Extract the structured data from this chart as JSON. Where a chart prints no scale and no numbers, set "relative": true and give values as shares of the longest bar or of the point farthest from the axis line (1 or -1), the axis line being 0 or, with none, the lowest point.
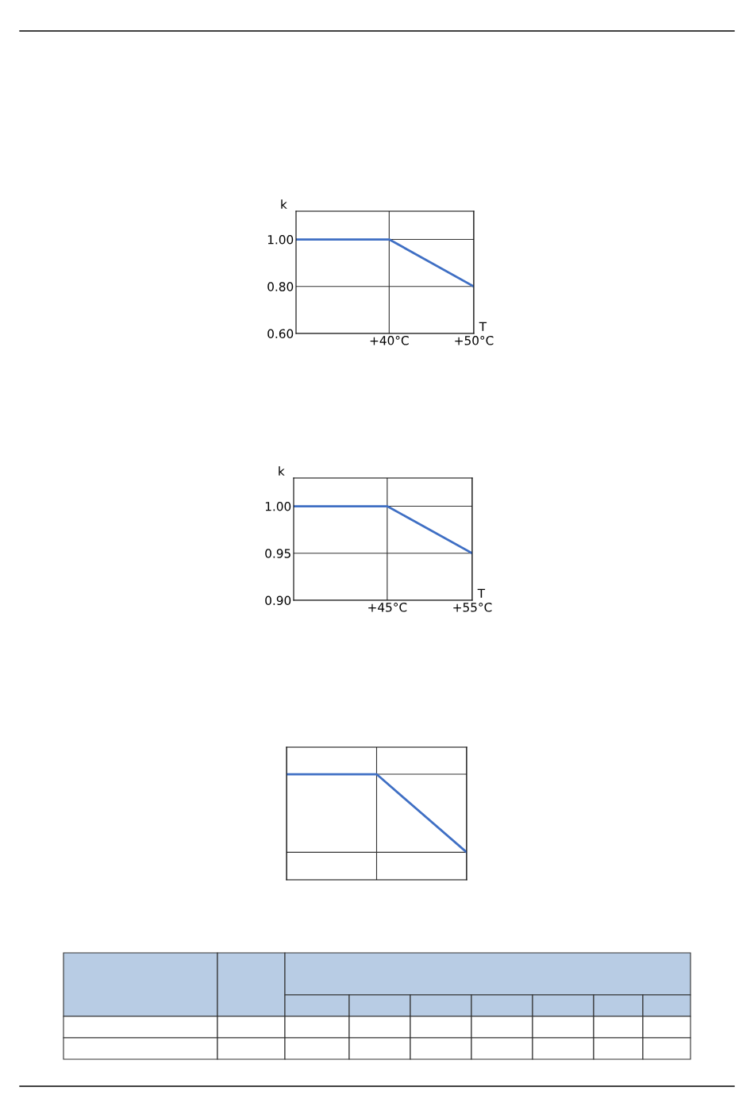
{
  "chart_data": [
    {
      "type": "line",
      "xlabel": "T",
      "ylabel": "k",
      "x": [
        29,
        40,
        50
      ],
      "xlim": [
        29,
        50
      ],
      "xticks": [
        {
          "value": 40,
          "label": "+40°C"
        },
        {
          "value": 50,
          "label": "+50°C"
        }
      ],
      "ylim": [
        0.6,
        1.12
      ],
      "yticks": [
        {
          "value": 0.6,
          "label": "0.60"
        },
        {
          "value": 0.8,
          "label": "0.80"
        },
        {
          "value": 1.0,
          "label": "1.00"
        }
      ],
      "grid": true,
      "series": [
        {
          "color": "#3f6fc4",
          "values": [
            1.0,
            1.0,
            0.8
          ]
        }
      ]
    },
    {
      "type": "line",
      "xlabel": "T",
      "ylabel": "k",
      "x": [
        34,
        45,
        55
      ],
      "xlim": [
        34,
        55
      ],
      "xticks": [
        {
          "value": 45,
          "label": "+45°C"
        },
        {
          "value": 55,
          "label": "+55°C"
        }
      ],
      "ylim": [
        0.9,
        1.03
      ],
      "yticks": [
        {
          "value": 0.9,
          "label": "0.90"
        },
        {
          "value": 0.95,
          "label": "0.95"
        },
        {
          "value": 1.0,
          "label": "1.00"
        }
      ],
      "grid": true,
      "series": [
        {
          "color": "#3f6fc4",
          "values": [
            1.0,
            1.0,
            0.95
          ]
        }
      ]
    },
    {
      "type": "line",
      "relative": true,
      "categories": [
        null,
        null,
        null
      ],
      "grid": true,
      "series": [
        {
          "color": "#3f6fc4",
          "values": [
            1,
            1,
            0.26
          ]
        }
      ]
    }
  ]
}
